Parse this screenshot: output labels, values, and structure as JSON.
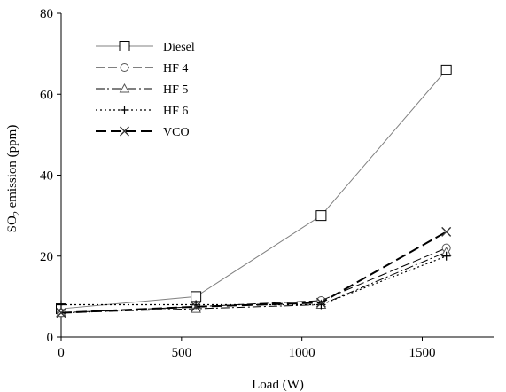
{
  "chart_data": {
    "type": "line",
    "title": "",
    "xlabel": "Load (W)",
    "ylabel_main": "SO",
    "ylabel_sub": "2",
    "ylabel_rest": " emission (ppm)",
    "xlim": [
      0,
      1800
    ],
    "ylim": [
      0,
      80
    ],
    "xticks": [
      0,
      500,
      1000,
      1500
    ],
    "yticks": [
      0,
      20,
      40,
      60,
      80
    ],
    "grid": false,
    "legend_position": "top-left",
    "series": [
      {
        "name": "Diesel",
        "x": [
          0,
          560,
          1080,
          1600
        ],
        "y": [
          7,
          10,
          30,
          66
        ],
        "marker": "square",
        "dash": "",
        "width": 1,
        "color": "#808080"
      },
      {
        "name": "HF 4",
        "x": [
          0,
          560,
          1080,
          1600
        ],
        "y": [
          6,
          7.5,
          9,
          22
        ],
        "marker": "circle",
        "dash": "10,4",
        "width": 1,
        "color": "#000000"
      },
      {
        "name": "HF 5",
        "x": [
          0,
          560,
          1080,
          1600
        ],
        "y": [
          6,
          7,
          8,
          21
        ],
        "marker": "triangle",
        "dash": "10,3,2,3",
        "width": 1,
        "color": "#000000"
      },
      {
        "name": "HF 6",
        "x": [
          0,
          560,
          1080,
          1600
        ],
        "y": [
          8,
          8,
          8,
          20
        ],
        "marker": "plus",
        "dash": "2,3",
        "width": 1.2,
        "color": "#000000"
      },
      {
        "name": "VCO",
        "x": [
          0,
          560,
          1080,
          1600
        ],
        "y": [
          6,
          7.5,
          8.5,
          26
        ],
        "marker": "x",
        "dash": "12,5",
        "width": 2,
        "color": "#000000"
      }
    ]
  }
}
